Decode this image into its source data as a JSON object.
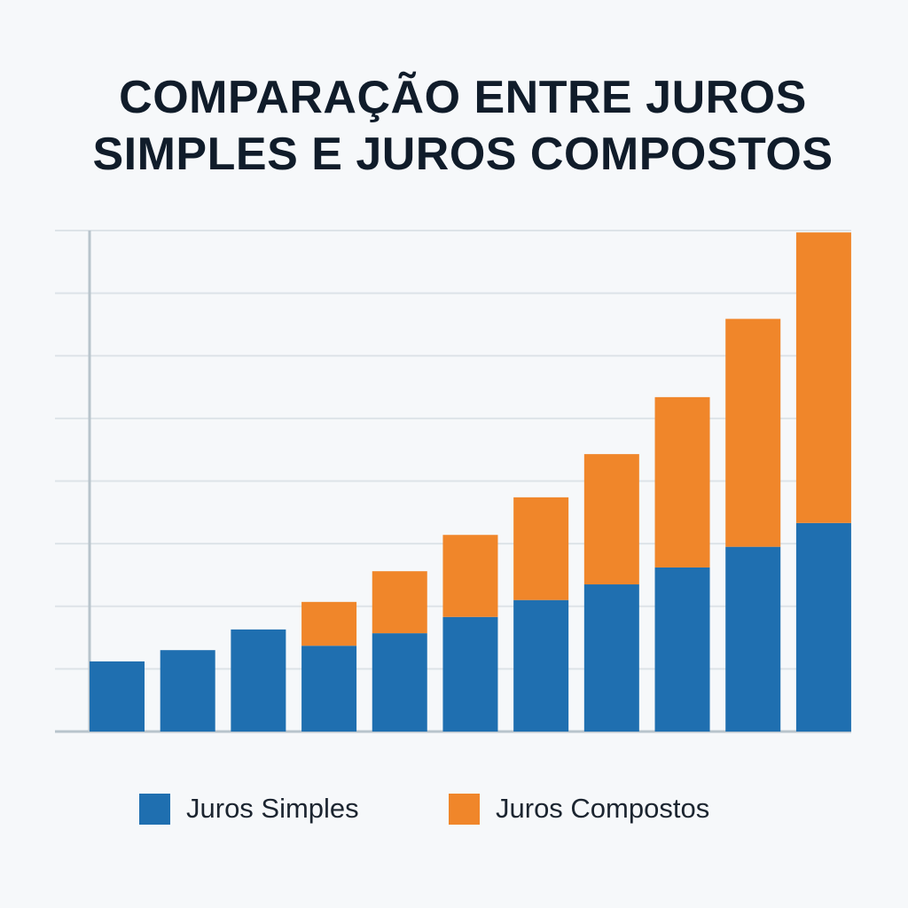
{
  "chart_data": {
    "type": "stacked-bar",
    "title": "COMPARAÇÃO ENTRE JUROS SIMPLES E JUROS COMPOSTOS",
    "categories": [
      null,
      null,
      null,
      null,
      null,
      null,
      null,
      null,
      null,
      null,
      null
    ],
    "series": [
      {
        "name": "Juros Simples",
        "color": "#1f6fb0",
        "values": [
          1.12,
          1.3,
          1.63,
          1.37,
          1.57,
          1.83,
          2.1,
          2.35,
          2.62,
          2.95,
          3.33
        ]
      },
      {
        "name": "Juros Compostos",
        "color": "#f0862a",
        "values": [
          0,
          0,
          0,
          0.7,
          0.99,
          1.31,
          1.64,
          2.08,
          2.72,
          3.64,
          4.64
        ]
      }
    ],
    "ylim": [
      0,
      8
    ],
    "yticks": [
      0,
      1,
      2,
      3,
      4,
      5,
      6,
      7,
      8
    ],
    "grid": true
  }
}
